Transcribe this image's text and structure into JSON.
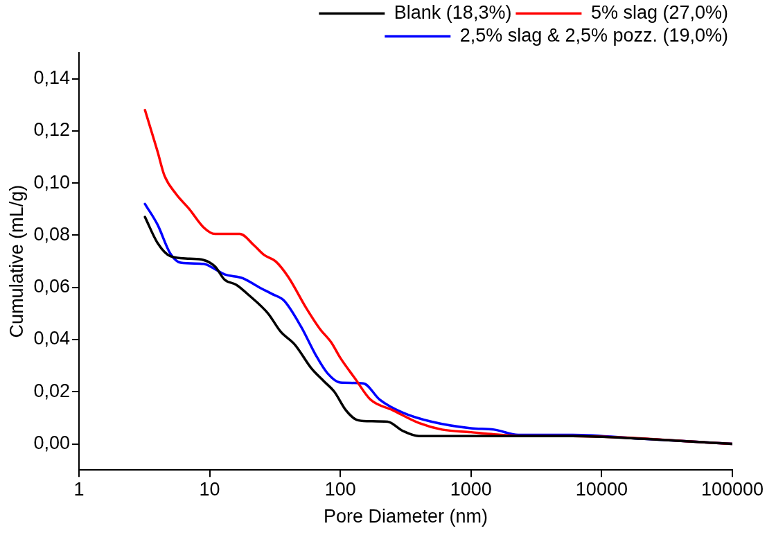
{
  "chart_data": {
    "type": "line",
    "xlabel": "Pore Diameter (nm)",
    "ylabel": "Cumulative (mL/g)",
    "log": "x",
    "grid": false,
    "legend": "top right",
    "marker": "none",
    "line_style": "solid",
    "xlim": [
      1,
      100000
    ],
    "xticks": [
      1,
      10,
      100,
      1000,
      10000,
      100000
    ],
    "ylim": [
      -0.01,
      0.15
    ],
    "yticks": [
      {
        "value": 0,
        "label": "0,00"
      },
      {
        "value": 0.02,
        "label": "0,02"
      },
      {
        "value": 0.04,
        "label": "0,04"
      },
      {
        "value": 0.06,
        "label": "0,06"
      },
      {
        "value": 0.08,
        "label": "0,08"
      },
      {
        "value": 0.1,
        "label": "0,10"
      },
      {
        "value": 0.12,
        "label": "0,12"
      },
      {
        "value": 0.14,
        "label": "0,14"
      }
    ],
    "series": [
      {
        "name": "Blank (18,3%)",
        "color": "#000000",
        "x": [
          3.2,
          4,
          5,
          7,
          9,
          11,
          13,
          16,
          20,
          28,
          35,
          45,
          60,
          75,
          90,
          110,
          130,
          150,
          230,
          300,
          400,
          1000,
          6000,
          20000,
          100000
        ],
        "values": [
          0.087,
          0.077,
          0.072,
          0.071,
          0.0705,
          0.068,
          0.063,
          0.061,
          0.057,
          0.05,
          0.043,
          0.038,
          0.029,
          0.024,
          0.02,
          0.013,
          0.0095,
          0.0088,
          0.0085,
          0.005,
          0.003,
          0.003,
          0.003,
          0.002,
          0.0
        ]
      },
      {
        "name": "5% slag (27,0%)",
        "color": "#ff0000",
        "x": [
          3.2,
          4,
          4.5,
          5.5,
          7,
          9,
          11,
          17,
          22,
          26,
          32,
          40,
          55,
          70,
          85,
          100,
          130,
          170,
          250,
          400,
          600,
          1000,
          1500,
          2500,
          6000,
          100000
        ],
        "values": [
          0.128,
          0.112,
          0.103,
          0.096,
          0.09,
          0.083,
          0.0805,
          0.0805,
          0.076,
          0.0725,
          0.07,
          0.064,
          0.052,
          0.044,
          0.039,
          0.033,
          0.025,
          0.017,
          0.013,
          0.008,
          0.0055,
          0.0045,
          0.0037,
          0.003,
          0.003,
          0.0
        ]
      },
      {
        "name": "2,5% slag & 2,5% pozz. (19,0%)",
        "color": "#0000ff",
        "x": [
          3.2,
          4,
          5,
          6,
          9,
          11,
          13,
          18,
          24,
          30,
          37,
          50,
          65,
          80,
          100,
          150,
          200,
          300,
          500,
          1000,
          1500,
          2300,
          6000,
          20000,
          100000
        ],
        "values": [
          0.092,
          0.084,
          0.073,
          0.0695,
          0.069,
          0.067,
          0.065,
          0.0635,
          0.06,
          0.0575,
          0.055,
          0.045,
          0.034,
          0.027,
          0.0235,
          0.0232,
          0.017,
          0.012,
          0.0085,
          0.006,
          0.0055,
          0.0035,
          0.0035,
          0.002,
          0.0
        ]
      }
    ]
  }
}
